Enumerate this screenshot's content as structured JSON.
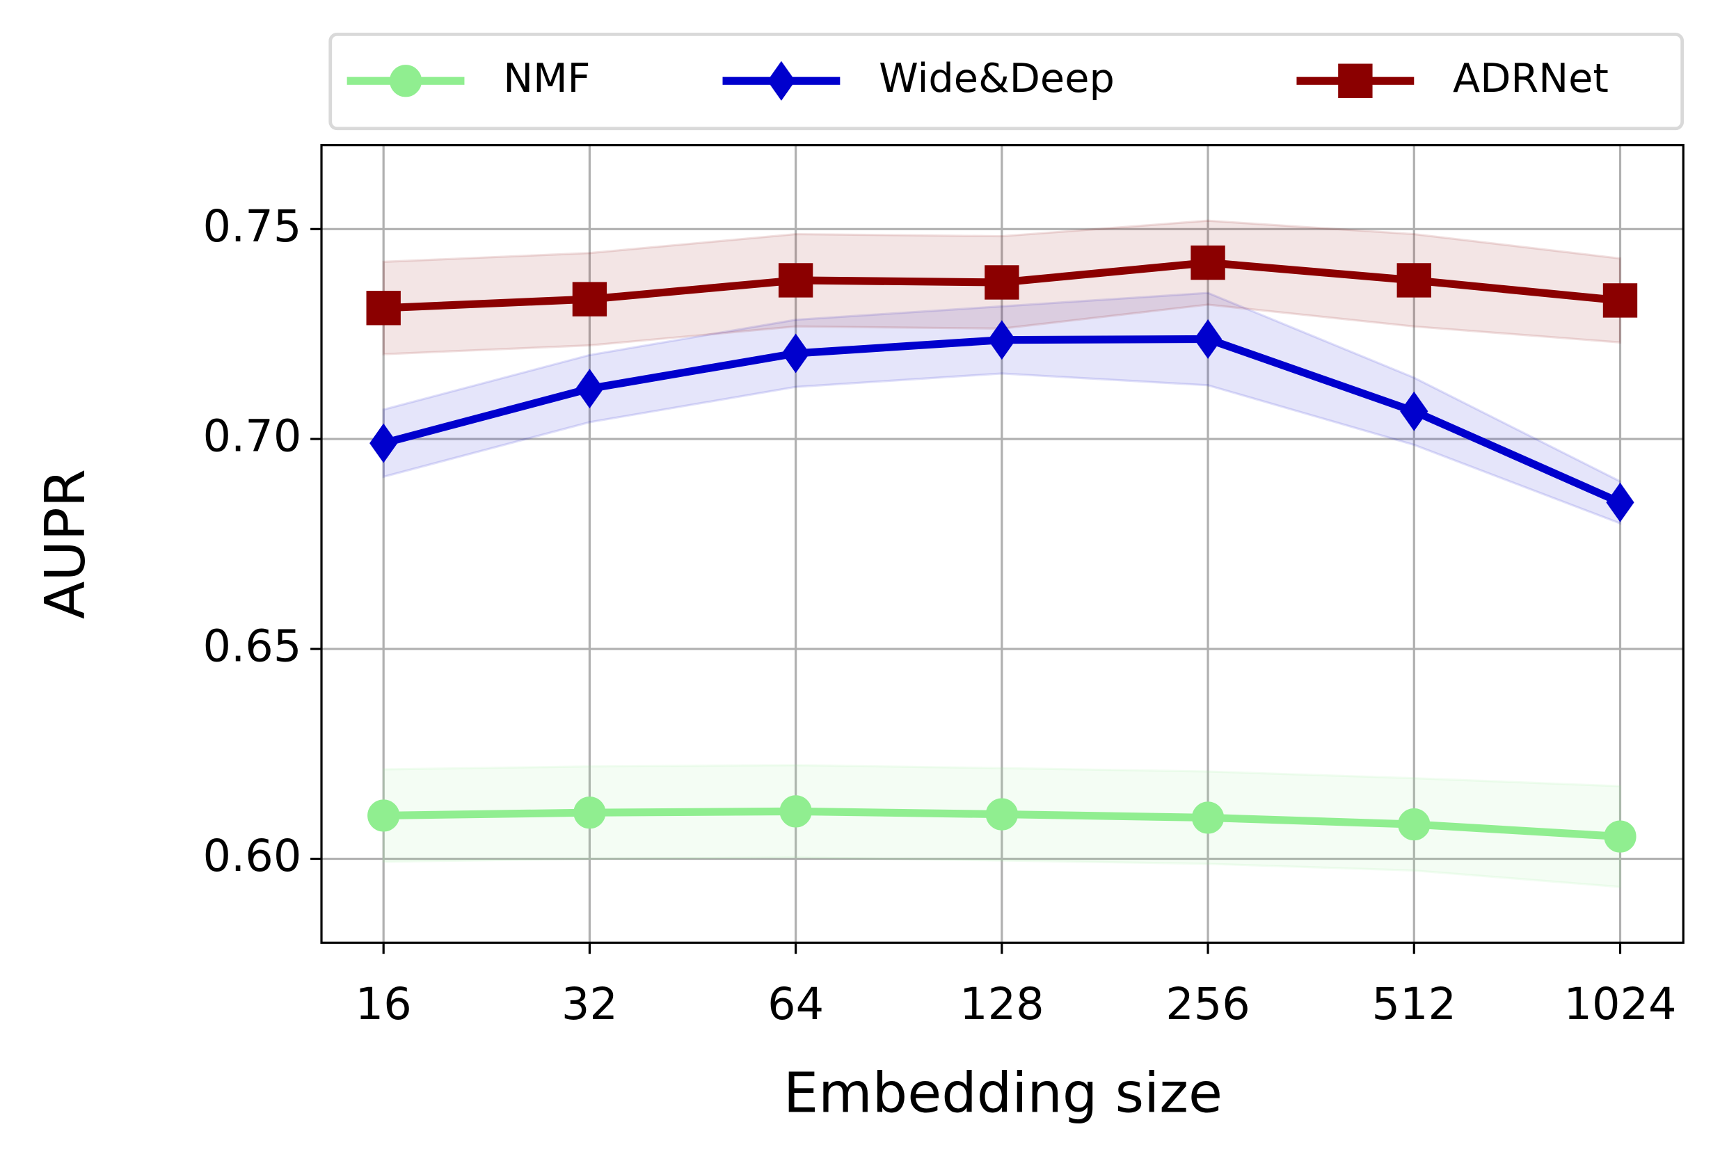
{
  "chart_data": {
    "type": "line",
    "x_label": "Embedding size",
    "y_label": "AUPR",
    "categories": [
      "16",
      "32",
      "64",
      "128",
      "256",
      "512",
      "1024"
    ],
    "ylim": [
      0.58,
      0.77
    ],
    "yticks": [
      {
        "value": 0.6,
        "label": "0.60"
      },
      {
        "value": 0.65,
        "label": "0.65"
      },
      {
        "value": 0.7,
        "label": "0.70"
      },
      {
        "value": 0.75,
        "label": "0.75"
      }
    ],
    "grid": true,
    "legend": "upper center outside",
    "series": [
      {
        "name": "NMF",
        "color": "#90ee90",
        "marker": "circle",
        "values": [
          0.6103,
          0.611,
          0.6113,
          0.6106,
          0.6098,
          0.6082,
          0.6053
        ],
        "std": [
          0.011,
          0.011,
          0.011,
          0.011,
          0.011,
          0.011,
          0.012
        ]
      },
      {
        "name": "Wide&Deep",
        "color": "#0000cd",
        "marker": "diamond",
        "values": [
          0.699,
          0.712,
          0.7204,
          0.7236,
          0.7238,
          0.7066,
          0.6849
        ],
        "std": [
          0.008,
          0.008,
          0.008,
          0.008,
          0.011,
          0.008,
          0.005
        ]
      },
      {
        "name": "ADRNet",
        "color": "#8b0000",
        "marker": "square",
        "values": [
          0.7312,
          0.7333,
          0.7378,
          0.7373,
          0.742,
          0.7378,
          0.733
        ],
        "std": [
          0.011,
          0.011,
          0.011,
          0.011,
          0.01,
          0.011,
          0.01
        ]
      }
    ]
  }
}
